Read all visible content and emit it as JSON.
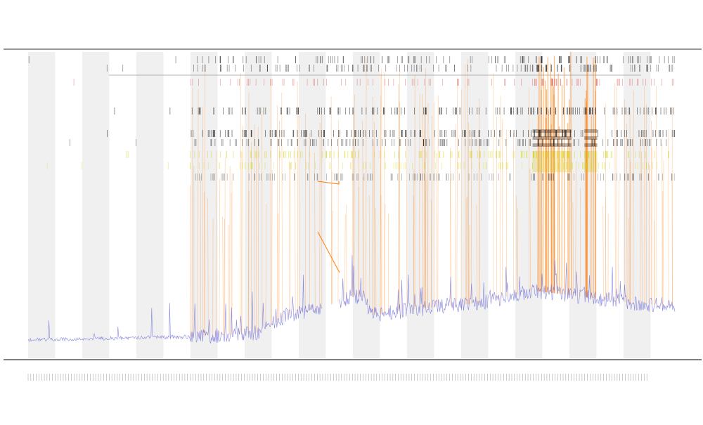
{
  "chart_data": {
    "type": "line",
    "title": "",
    "subtitle_lines": [],
    "xlabel": "",
    "ylabel": "",
    "legend": {
      "placement": "top-left",
      "entries": [],
      "colors": [
        "#222222",
        "#e06060",
        "#c8c800",
        "#ff7f0e"
      ]
    },
    "grid": true,
    "band_count": 24,
    "band_colors": [
      "#f0f0f0",
      "#ffffff"
    ],
    "series": [
      {
        "color": "#6a6ad8",
        "kind": "baseline"
      },
      {
        "color": "#ff7f0e",
        "kind": "spikes"
      },
      {
        "color": "#222222",
        "kind": "event-ticks"
      },
      {
        "color": "#e06060",
        "kind": "event-ticks"
      },
      {
        "color": "#d4d400",
        "kind": "event-ticks"
      }
    ],
    "baseline_profile": [
      [
        0.0,
        0.94
      ],
      [
        0.25,
        0.93
      ],
      [
        0.35,
        0.92
      ],
      [
        0.4,
        0.86
      ],
      [
        0.45,
        0.84
      ],
      [
        0.5,
        0.8
      ],
      [
        0.52,
        0.8
      ],
      [
        0.53,
        0.86
      ],
      [
        0.6,
        0.84
      ],
      [
        0.7,
        0.82
      ],
      [
        0.78,
        0.78
      ],
      [
        0.86,
        0.8
      ],
      [
        0.93,
        0.82
      ],
      [
        1.0,
        0.83
      ]
    ],
    "hot_regions": [
      [
        0.78,
        0.84
      ],
      [
        0.86,
        0.88
      ]
    ]
  }
}
